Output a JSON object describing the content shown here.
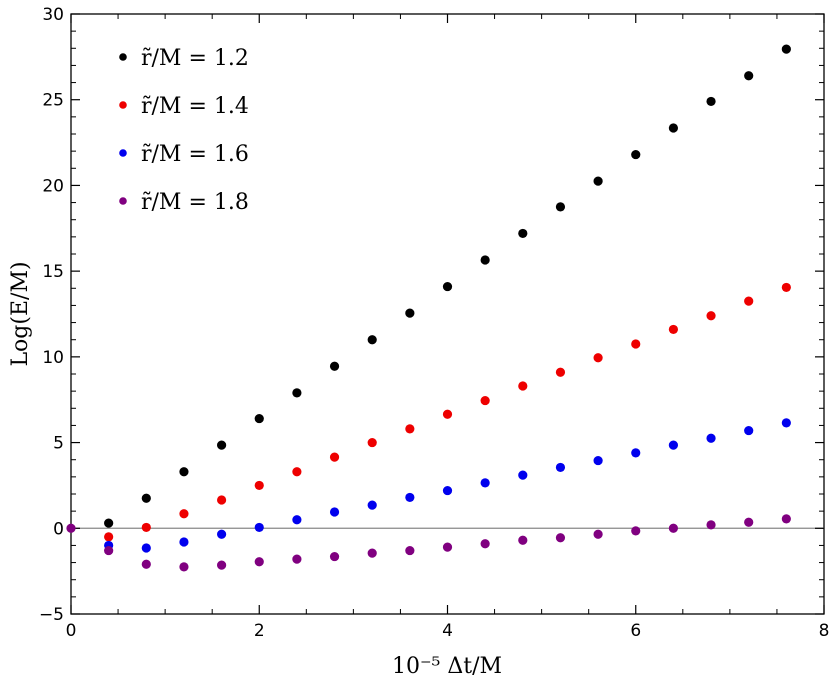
{
  "chart_data": {
    "type": "scatter",
    "title": "",
    "xlabel": "10⁻⁵ Δt/M",
    "ylabel": "Log(E/M)",
    "xlim": [
      0,
      8
    ],
    "ylim": [
      -5,
      30
    ],
    "x_ticks": [
      0,
      2,
      4,
      6,
      8
    ],
    "y_ticks": [
      -5,
      0,
      5,
      10,
      15,
      20,
      25,
      30
    ],
    "x_tick_labels": [
      "0",
      "2",
      "4",
      "6",
      "8"
    ],
    "y_tick_labels": [
      "−5",
      "0",
      "5",
      "10",
      "15",
      "20",
      "25",
      "30"
    ],
    "reference_line_y": 0,
    "grid": false,
    "legend_position": "top-left",
    "x": [
      0,
      0.4,
      0.8,
      1.2,
      1.6,
      2.0,
      2.4,
      2.8,
      3.2,
      3.6,
      4.0,
      4.4,
      4.8,
      5.2,
      5.6,
      6.0,
      6.4,
      6.8,
      7.2,
      7.6
    ],
    "series": [
      {
        "name": "r̃/M = 1.2",
        "color": "#000000",
        "values": [
          null,
          0.3,
          1.75,
          3.3,
          4.85,
          6.4,
          7.9,
          9.45,
          11.0,
          12.55,
          14.1,
          15.65,
          17.2,
          18.75,
          20.25,
          21.8,
          23.35,
          24.9,
          26.4,
          27.95
        ]
      },
      {
        "name": "r̃/M = 1.4",
        "color": "#ee0000",
        "values": [
          null,
          -0.5,
          0.05,
          0.85,
          1.65,
          2.5,
          3.3,
          4.15,
          5.0,
          5.8,
          6.65,
          7.45,
          8.3,
          9.1,
          9.95,
          10.75,
          11.6,
          12.4,
          13.25,
          14.05
        ]
      },
      {
        "name": "r̃/M = 1.6",
        "color": "#0000ee",
        "values": [
          null,
          -1.0,
          -1.15,
          -0.8,
          -0.35,
          0.05,
          0.5,
          0.95,
          1.35,
          1.8,
          2.2,
          2.65,
          3.1,
          3.55,
          3.95,
          4.4,
          4.85,
          5.25,
          5.7,
          6.15
        ]
      },
      {
        "name": "r̃/M = 1.8",
        "color": "#800080",
        "values": [
          0,
          -1.3,
          -2.1,
          -2.25,
          -2.15,
          -1.95,
          -1.8,
          -1.65,
          -1.45,
          -1.3,
          -1.1,
          -0.9,
          -0.7,
          -0.55,
          -0.35,
          -0.15,
          0.0,
          0.2,
          0.35,
          0.55
        ]
      }
    ]
  }
}
